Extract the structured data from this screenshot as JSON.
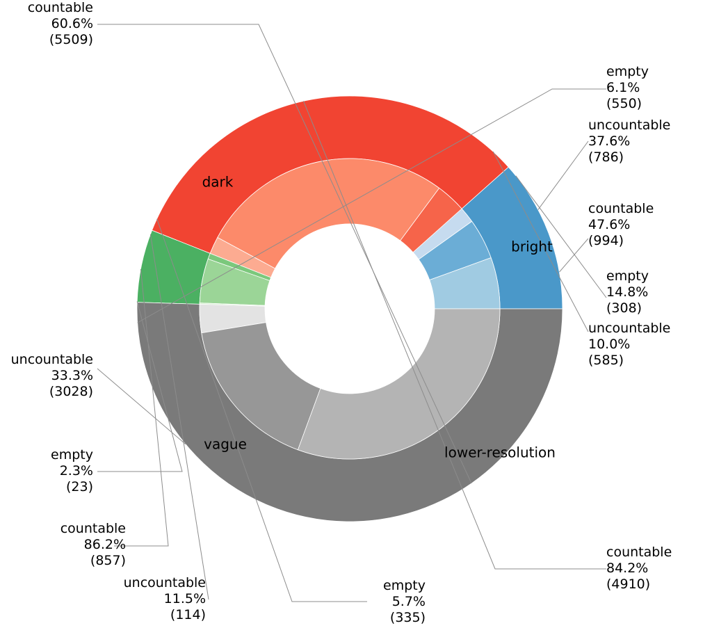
{
  "chart_data": {
    "type": "pie",
    "subtype": "nested-donut",
    "title": "",
    "groups": [
      {
        "name": "bright",
        "color": "#4a98c9",
        "total": 2088,
        "subcategories": [
          {
            "name": "countable",
            "percent": "47.6%",
            "count": "(994)",
            "value": 994,
            "color": "#a0cbe2"
          },
          {
            "name": "uncountable",
            "percent": "37.6%",
            "count": "(786)",
            "value": 786,
            "color": "#6badd6"
          },
          {
            "name": "empty",
            "percent": "14.8%",
            "count": "(308)",
            "value": 308,
            "color": "#c6dbef"
          }
        ]
      },
      {
        "name": "lower-resolution",
        "color": "#f14432",
        "total": 5830,
        "subcategories": [
          {
            "name": "uncountable",
            "percent": "10.0%",
            "count": "(585)",
            "value": 585,
            "color": "#f6644a"
          },
          {
            "name": "countable",
            "percent": "84.2%",
            "count": "(4910)",
            "value": 4910,
            "color": "#fc8a6a"
          },
          {
            "name": "empty",
            "percent": "5.7%",
            "count": "(335)",
            "value": 335,
            "color": "#fcab91"
          }
        ]
      },
      {
        "name": "vague",
        "color": "#4bb062",
        "total": 994,
        "subcategories": [
          {
            "name": "uncountable",
            "percent": "11.5%",
            "count": "(114)",
            "value": 114,
            "color": "#7bc87c"
          },
          {
            "name": "countable",
            "percent": "86.2%",
            "count": "(857)",
            "value": 857,
            "color": "#9bd597"
          },
          {
            "name": "empty",
            "percent": "2.3%",
            "count": "(23)",
            "value": 23,
            "color": "#c7e9c0"
          }
        ]
      },
      {
        "name": "dark",
        "color": "#7a7a7a",
        "total": 9087,
        "subcategories": [
          {
            "name": "empty",
            "percent": "6.1%",
            "count": "(550)",
            "value": 550,
            "color": "#e3e3e3"
          },
          {
            "name": "uncountable",
            "percent": "33.3%",
            "count": "(3028)",
            "value": 3028,
            "color": "#979797"
          },
          {
            "name": "countable",
            "percent": "60.6%",
            "count": "(5509)",
            "value": 5509,
            "color": "#b4b4b4"
          }
        ]
      }
    ]
  }
}
